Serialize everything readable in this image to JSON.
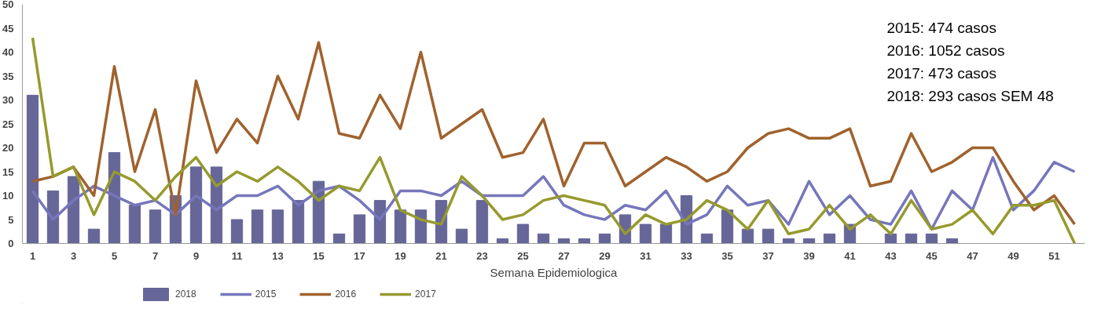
{
  "chart_data": {
    "type": "line",
    "xlabel": "Semana Epidemiologica",
    "x": [
      1,
      2,
      3,
      4,
      5,
      6,
      7,
      8,
      9,
      10,
      11,
      12,
      13,
      14,
      15,
      16,
      17,
      18,
      19,
      20,
      21,
      22,
      23,
      24,
      25,
      26,
      27,
      28,
      29,
      30,
      31,
      32,
      33,
      34,
      35,
      36,
      37,
      38,
      39,
      40,
      41,
      42,
      43,
      44,
      45,
      46,
      47,
      48,
      49,
      50,
      51,
      52
    ],
    "xlim": [
      0.5,
      52.5
    ],
    "xticks": [
      1,
      3,
      5,
      7,
      9,
      11,
      13,
      15,
      17,
      19,
      21,
      23,
      25,
      27,
      29,
      31,
      33,
      35,
      37,
      39,
      41,
      43,
      45,
      47,
      49,
      51
    ],
    "ylim": [
      0,
      50
    ],
    "yticks": [
      0,
      5,
      10,
      15,
      20,
      25,
      30,
      35,
      40,
      45,
      50
    ],
    "grid": false,
    "legend": "bottom",
    "marker": "none",
    "line_style": "solid",
    "annotations": [
      "2015: 474 casos",
      "2016: 1052 casos",
      "2017: 473 casos",
      "2018: 293 casos   SEM 48"
    ],
    "series": [
      {
        "name": "2018",
        "type": "bar",
        "color": "#666699",
        "values": [
          31,
          11,
          14,
          3,
          19,
          8,
          7,
          10,
          16,
          16,
          5,
          7,
          7,
          9,
          13,
          2,
          6,
          9,
          7,
          7,
          9,
          3,
          9,
          1,
          4,
          2,
          1,
          1,
          2,
          6,
          4,
          4,
          10,
          2,
          7,
          3,
          3,
          1,
          1,
          2,
          4,
          null,
          2,
          2,
          2,
          1,
          null,
          null,
          null,
          null,
          null,
          null
        ]
      },
      {
        "name": "2015",
        "color": "#7676bc",
        "values": [
          11,
          5,
          9,
          12,
          10,
          8,
          9,
          6,
          10,
          7,
          10,
          10,
          12,
          8,
          11,
          12,
          9,
          5,
          11,
          11,
          10,
          13,
          10,
          10,
          10,
          14,
          8,
          6,
          5,
          8,
          7,
          11,
          4,
          6,
          12,
          8,
          9,
          4,
          13,
          6,
          10,
          5,
          4,
          11,
          3,
          11,
          7,
          18,
          7,
          11,
          17,
          15
        ]
      },
      {
        "name": "2016",
        "color": "#a0622d",
        "values": [
          13,
          14,
          16,
          10,
          37,
          15,
          28,
          6,
          34,
          19,
          26,
          21,
          35,
          26,
          42,
          23,
          22,
          31,
          24,
          40,
          22,
          25,
          28,
          18,
          19,
          26,
          12,
          21,
          21,
          12,
          15,
          18,
          16,
          13,
          15,
          20,
          23,
          24,
          22,
          22,
          24,
          12,
          13,
          23,
          15,
          17,
          20,
          20,
          13,
          7,
          10,
          4
        ]
      },
      {
        "name": "2017",
        "color": "#969a2e",
        "values": [
          43,
          14,
          16,
          6,
          15,
          13,
          9,
          14,
          18,
          12,
          15,
          13,
          16,
          13,
          9,
          12,
          11,
          18,
          7,
          5,
          4,
          14,
          10,
          5,
          6,
          9,
          10,
          9,
          8,
          2,
          6,
          4,
          5,
          9,
          7,
          3,
          9,
          2,
          3,
          8,
          3,
          6,
          2,
          9,
          3,
          4,
          7,
          2,
          8,
          8,
          9,
          0
        ]
      }
    ]
  }
}
